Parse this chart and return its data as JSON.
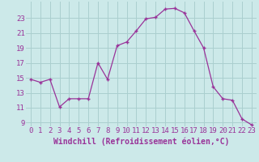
{
  "x": [
    0,
    1,
    2,
    3,
    4,
    5,
    6,
    7,
    8,
    9,
    10,
    11,
    12,
    13,
    14,
    15,
    16,
    17,
    18,
    19,
    20,
    21,
    22,
    23
  ],
  "y": [
    14.8,
    14.4,
    14.8,
    11.1,
    12.2,
    12.2,
    12.2,
    17.0,
    14.8,
    19.3,
    19.8,
    21.3,
    22.9,
    23.1,
    24.2,
    24.3,
    23.7,
    21.3,
    19.0,
    13.8,
    12.2,
    12.0,
    9.5,
    8.7
  ],
  "line_color": "#993399",
  "marker": "+",
  "marker_size": 3.5,
  "marker_lw": 1.0,
  "bg_color": "#cce9e9",
  "grid_color": "#aacfcf",
  "xlabel": "Windchill (Refroidissement éolien,°C)",
  "xlabel_color": "#993399",
  "ytick_labels": [
    "9",
    "11",
    "13",
    "15",
    "17",
    "19",
    "21",
    "23"
  ],
  "ytick_values": [
    9,
    11,
    13,
    15,
    17,
    19,
    21,
    23
  ],
  "ylim": [
    8.5,
    25.2
  ],
  "xlim": [
    -0.5,
    23.5
  ],
  "xtick_values": [
    0,
    1,
    2,
    3,
    4,
    5,
    6,
    7,
    8,
    9,
    10,
    11,
    12,
    13,
    14,
    15,
    16,
    17,
    18,
    19,
    20,
    21,
    22,
    23
  ],
  "tick_fontsize": 6.5,
  "xlabel_fontsize": 7.0
}
